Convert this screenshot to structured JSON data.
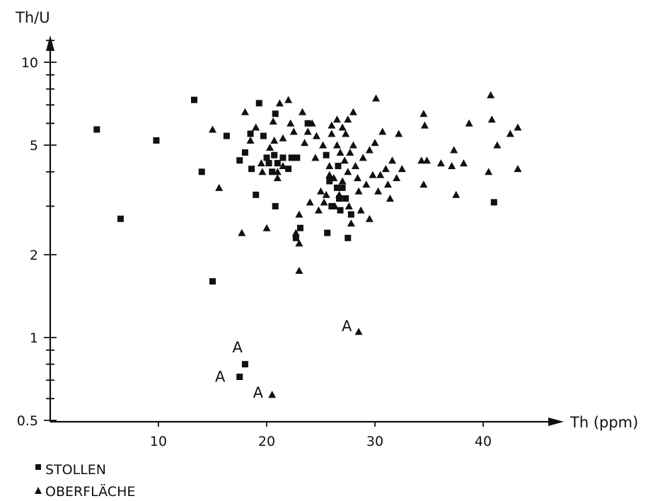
{
  "chart_data": {
    "type": "scatter",
    "title": "",
    "xlabel": "Th (ppm)",
    "ylabel": "Th/U",
    "xlim": [
      0,
      45
    ],
    "ylim": [
      0.4,
      14
    ],
    "y_scale": "log",
    "grid": false,
    "legend_position": "bottom-left",
    "x_ticks": [
      {
        "value": 10,
        "label": "10"
      },
      {
        "value": 20,
        "label": "20"
      },
      {
        "value": 30,
        "label": "30"
      },
      {
        "value": 40,
        "label": "40"
      }
    ],
    "y_ticks": [
      {
        "value": 0.5,
        "label": "0.5"
      },
      {
        "value": 1,
        "label": "1"
      },
      {
        "value": 2,
        "label": "2"
      },
      {
        "value": 5,
        "label": "5"
      },
      {
        "value": 10,
        "label": "10"
      }
    ],
    "y_minor_ticks": [
      0.6,
      0.7,
      0.8,
      0.9,
      3,
      4,
      6,
      7,
      8,
      9,
      12
    ],
    "series": [
      {
        "name": "STOLLEN",
        "marker": "square",
        "points": [
          [
            4.3,
            5.7
          ],
          [
            9.8,
            5.2
          ],
          [
            6.5,
            2.7
          ],
          [
            13.3,
            7.3
          ],
          [
            14.0,
            4.0
          ],
          [
            15.0,
            1.6
          ],
          [
            16.3,
            5.4
          ],
          [
            17.5,
            4.4
          ],
          [
            18.0,
            4.7
          ],
          [
            18.5,
            5.5
          ],
          [
            18.6,
            4.1
          ],
          [
            19.0,
            3.3
          ],
          [
            19.3,
            7.1
          ],
          [
            19.7,
            5.4
          ],
          [
            20.0,
            4.5
          ],
          [
            20.2,
            4.3
          ],
          [
            20.5,
            4.0
          ],
          [
            20.7,
            4.6
          ],
          [
            20.8,
            3.0
          ],
          [
            20.8,
            6.5
          ],
          [
            21.0,
            4.3
          ],
          [
            21.5,
            4.5
          ],
          [
            22.0,
            4.1
          ],
          [
            22.3,
            4.5
          ],
          [
            22.8,
            4.5
          ],
          [
            23.1,
            2.5
          ],
          [
            22.7,
            2.3
          ],
          [
            23.8,
            6.0
          ],
          [
            25.5,
            4.6
          ],
          [
            25.8,
            3.7
          ],
          [
            26.5,
            3.5
          ],
          [
            26.7,
            3.2
          ],
          [
            26.8,
            2.9
          ],
          [
            27.0,
            3.5
          ],
          [
            27.3,
            3.2
          ],
          [
            27.5,
            2.3
          ],
          [
            27.8,
            2.8
          ],
          [
            26.0,
            3.0
          ],
          [
            25.6,
            2.4
          ],
          [
            26.6,
            4.2
          ],
          [
            41.0,
            3.1
          ],
          [
            17.5,
            0.72
          ],
          [
            18.0,
            0.8
          ]
        ]
      },
      {
        "name": "OBERFLÄCHE",
        "marker": "triangle",
        "points": [
          [
            15.0,
            5.7
          ],
          [
            15.6,
            3.5
          ],
          [
            17.7,
            2.4
          ],
          [
            18.0,
            6.6
          ],
          [
            18.5,
            5.2
          ],
          [
            19.0,
            5.8
          ],
          [
            19.5,
            4.3
          ],
          [
            19.6,
            4.0
          ],
          [
            20.0,
            2.5
          ],
          [
            20.3,
            4.9
          ],
          [
            20.6,
            6.1
          ],
          [
            20.7,
            5.2
          ],
          [
            21.0,
            4.0
          ],
          [
            21.0,
            3.8
          ],
          [
            21.2,
            7.1
          ],
          [
            21.5,
            4.2
          ],
          [
            21.5,
            5.3
          ],
          [
            22.0,
            7.3
          ],
          [
            22.2,
            6.0
          ],
          [
            22.5,
            5.6
          ],
          [
            22.7,
            2.4
          ],
          [
            23.0,
            2.2
          ],
          [
            23.0,
            2.8
          ],
          [
            23.0,
            1.75
          ],
          [
            23.3,
            6.6
          ],
          [
            23.5,
            5.1
          ],
          [
            23.8,
            5.6
          ],
          [
            24.0,
            3.1
          ],
          [
            24.2,
            6.0
          ],
          [
            24.5,
            4.5
          ],
          [
            24.6,
            5.4
          ],
          [
            24.8,
            2.9
          ],
          [
            25.0,
            3.4
          ],
          [
            25.2,
            5.0
          ],
          [
            25.3,
            3.1
          ],
          [
            25.5,
            3.3
          ],
          [
            25.8,
            4.2
          ],
          [
            25.8,
            3.9
          ],
          [
            26.0,
            5.9
          ],
          [
            26.0,
            5.5
          ],
          [
            26.2,
            3.8
          ],
          [
            26.3,
            3.0
          ],
          [
            26.5,
            6.2
          ],
          [
            26.5,
            5.0
          ],
          [
            26.7,
            3.3
          ],
          [
            26.8,
            4.7
          ],
          [
            27.0,
            5.8
          ],
          [
            27.0,
            3.7
          ],
          [
            27.2,
            4.4
          ],
          [
            27.3,
            5.5
          ],
          [
            27.5,
            6.2
          ],
          [
            27.5,
            4.0
          ],
          [
            27.6,
            3.0
          ],
          [
            27.7,
            4.7
          ],
          [
            27.8,
            2.6
          ],
          [
            28.0,
            6.6
          ],
          [
            28.0,
            5.0
          ],
          [
            28.2,
            4.2
          ],
          [
            28.4,
            3.8
          ],
          [
            28.5,
            3.4
          ],
          [
            28.7,
            2.9
          ],
          [
            28.9,
            4.5
          ],
          [
            29.2,
            3.6
          ],
          [
            29.5,
            2.7
          ],
          [
            29.5,
            4.8
          ],
          [
            29.8,
            3.9
          ],
          [
            30.0,
            5.1
          ],
          [
            30.1,
            7.4
          ],
          [
            30.3,
            3.4
          ],
          [
            30.5,
            3.9
          ],
          [
            30.7,
            5.6
          ],
          [
            31.0,
            4.1
          ],
          [
            31.2,
            3.6
          ],
          [
            31.4,
            3.2
          ],
          [
            31.6,
            4.4
          ],
          [
            32.0,
            3.8
          ],
          [
            32.2,
            5.5
          ],
          [
            32.5,
            4.1
          ],
          [
            34.3,
            4.4
          ],
          [
            34.5,
            3.6
          ],
          [
            34.5,
            6.5
          ],
          [
            34.6,
            5.9
          ],
          [
            34.8,
            4.4
          ],
          [
            36.1,
            4.3
          ],
          [
            37.1,
            4.2
          ],
          [
            37.3,
            4.8
          ],
          [
            37.5,
            3.3
          ],
          [
            38.2,
            4.3
          ],
          [
            38.7,
            6.0
          ],
          [
            40.5,
            4.0
          ],
          [
            40.7,
            7.6
          ],
          [
            40.8,
            6.2
          ],
          [
            41.3,
            5.0
          ],
          [
            42.5,
            5.5
          ],
          [
            43.2,
            5.8
          ],
          [
            43.2,
            4.1
          ],
          [
            28.5,
            1.05
          ],
          [
            20.5,
            0.62
          ]
        ]
      }
    ],
    "annotations": [
      {
        "text": "A",
        "x": 17.3,
        "y": 0.92
      },
      {
        "text": "A",
        "x": 15.7,
        "y": 0.72
      },
      {
        "text": "A",
        "x": 19.2,
        "y": 0.63
      },
      {
        "text": "A",
        "x": 27.4,
        "y": 1.1
      }
    ]
  }
}
